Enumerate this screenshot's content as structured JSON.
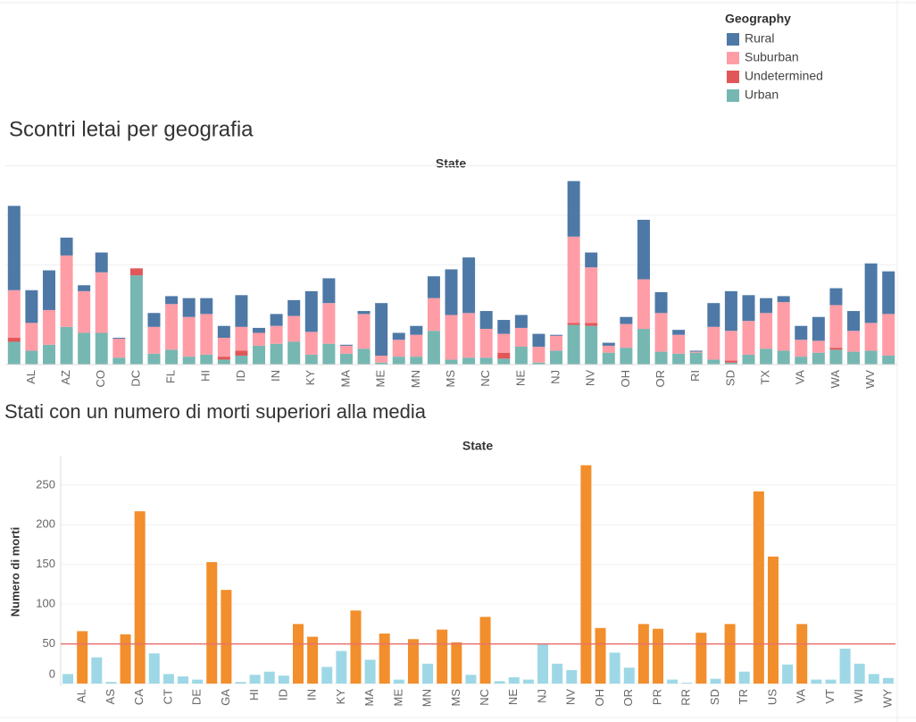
{
  "chart_data": [
    {
      "type": "stacked_bar",
      "title": "Scontri letai per geografia",
      "x_axis_title": "State",
      "legend_title": "Geography",
      "categories": [
        null,
        "AL",
        null,
        "AZ",
        null,
        "CO",
        null,
        "DC",
        null,
        "FL",
        null,
        "HI",
        null,
        "ID",
        null,
        "IN",
        null,
        "KY",
        null,
        "MA",
        null,
        "ME",
        null,
        "MN",
        null,
        "MS",
        null,
        "NC",
        null,
        "NE",
        null,
        "NJ",
        null,
        "NV",
        null,
        "OH",
        null,
        "OR",
        null,
        "RI",
        null,
        "SD",
        null,
        "TX",
        null,
        "VA",
        null,
        "WA",
        null,
        "WV",
        null
      ],
      "ylim": [
        0,
        200
      ],
      "series": [
        {
          "name": "Urban",
          "color": "#76b7b2",
          "values": [
            23,
            14,
            20,
            38,
            32,
            32,
            7,
            90,
            11,
            15,
            8,
            10,
            5,
            9,
            19,
            21,
            23,
            10,
            21,
            11,
            16,
            2,
            8,
            8,
            34,
            5,
            7,
            7,
            6,
            18,
            2,
            14,
            40,
            39,
            12,
            17,
            36,
            13,
            11,
            12,
            5,
            2,
            10,
            16,
            14,
            8,
            12,
            15,
            13,
            14,
            9
          ]
        },
        {
          "name": "Undetermined",
          "color": "#e15759",
          "values": [
            4,
            0,
            0,
            0,
            0,
            0,
            0,
            7,
            0,
            0,
            0,
            0,
            3,
            5,
            0,
            0,
            0,
            0,
            0,
            0,
            0,
            0,
            0,
            0,
            0,
            0,
            0,
            0,
            6,
            0,
            0,
            0,
            2,
            3,
            0,
            0,
            0,
            0,
            0,
            0,
            0,
            2,
            0,
            0,
            0,
            0,
            0,
            2,
            0,
            0,
            0
          ]
        },
        {
          "name": "Suburban",
          "color": "#ff9da7",
          "values": [
            48,
            28,
            35,
            72,
            42,
            61,
            19,
            0,
            27,
            46,
            40,
            41,
            19,
            24,
            13,
            18,
            26,
            23,
            41,
            8,
            35,
            7,
            17,
            22,
            33,
            45,
            45,
            29,
            19,
            19,
            16,
            15,
            87,
            56,
            7,
            24,
            50,
            39,
            19,
            1,
            33,
            30,
            34,
            36,
            49,
            17,
            12,
            43,
            21,
            28,
            42
          ]
        },
        {
          "name": "Rural",
          "color": "#4e79a7",
          "values": [
            85,
            33,
            40,
            18,
            6,
            20,
            1,
            0,
            14,
            8,
            19,
            16,
            12,
            32,
            5,
            12,
            16,
            41,
            25,
            1,
            3,
            53,
            7,
            9,
            22,
            46,
            56,
            18,
            14,
            13,
            13,
            1,
            56,
            15,
            3,
            7,
            60,
            21,
            5,
            1,
            24,
            40,
            26,
            15,
            6,
            14,
            24,
            17,
            20,
            60,
            43
          ]
        }
      ]
    },
    {
      "type": "bar",
      "title": "Stati con un numero di morti superiori alla media",
      "x_axis_title": "State",
      "y_axis_title": "Numero di morti",
      "categories": [
        null,
        "AL",
        null,
        "AS",
        null,
        "CA",
        null,
        "CT",
        null,
        "DE",
        null,
        "GA",
        null,
        "HI",
        null,
        "ID",
        null,
        "IN",
        null,
        "KY",
        null,
        "MA",
        null,
        "ME",
        null,
        "MN",
        null,
        "MS",
        null,
        "NC",
        null,
        "NE",
        null,
        "NJ",
        null,
        "NV",
        null,
        "OH",
        null,
        "OR",
        null,
        "PR",
        null,
        "RR",
        null,
        "SD",
        null,
        "TR",
        null,
        "US",
        null,
        "VA",
        null,
        "VT",
        null,
        "WI",
        null,
        "WY"
      ],
      "values": [
        12,
        66,
        33,
        2,
        62,
        217,
        38,
        12,
        9,
        5,
        153,
        118,
        2,
        11,
        15,
        10,
        75,
        59,
        21,
        41,
        92,
        30,
        63,
        5,
        56,
        25,
        68,
        52,
        11,
        84,
        3,
        8,
        5,
        50,
        25,
        17,
        275,
        70,
        39,
        20,
        75,
        69,
        5,
        1,
        64,
        6,
        75,
        15,
        242,
        160,
        24,
        75,
        5,
        5,
        44,
        25,
        12,
        7
      ],
      "ylim": [
        0,
        287
      ],
      "yticks": [
        0,
        50,
        100,
        150,
        200,
        250
      ],
      "grid": true,
      "reference_line": {
        "value": 50,
        "color": "#e8726f"
      },
      "color_above_line": "#f28e2b",
      "color_below_line": "#9ed8e6"
    }
  ]
}
